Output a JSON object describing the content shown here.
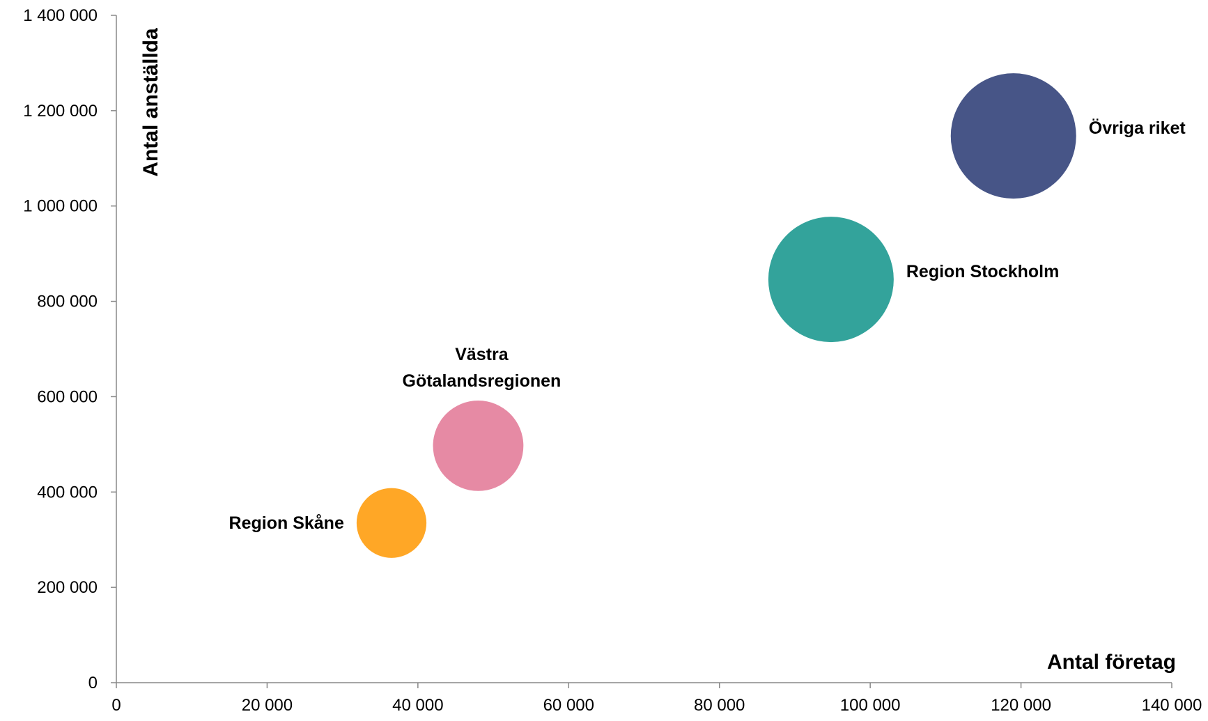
{
  "chart_data": {
    "type": "bubble",
    "xlabel": "Antal företag",
    "ylabel": "Antal anställda",
    "xlim": [
      0,
      140000
    ],
    "ylim": [
      0,
      1400000
    ],
    "x_ticks": [
      0,
      20000,
      40000,
      60000,
      80000,
      100000,
      120000,
      140000
    ],
    "y_ticks": [
      0,
      200000,
      400000,
      600000,
      800000,
      1000000,
      1200000,
      1400000
    ],
    "x_tick_labels": [
      "0",
      "20 000",
      "40 000",
      "60 000",
      "80 000",
      "100 000",
      "120 000",
      "140 000"
    ],
    "y_tick_labels": [
      "0",
      "200 000",
      "400 000",
      "600 000",
      "800 000",
      "1 000 000",
      "1 200 000",
      "1 400 000"
    ],
    "grid": false,
    "points": [
      {
        "label": [
          "Region Skåne"
        ],
        "x": 36500,
        "y": 335000,
        "size": 0.31,
        "color": "#FFA726",
        "label_position": "left"
      },
      {
        "label": [
          "Västra",
          "Götalandsregionen"
        ],
        "x": 48000,
        "y": 497000,
        "size": 0.52,
        "color": "#E68AA4",
        "label_position": "above"
      },
      {
        "label": [
          "Region Stockholm"
        ],
        "x": 94800,
        "y": 846000,
        "size": 1.0,
        "color": "#33A39B",
        "label_position": "right"
      },
      {
        "label": [
          "Övriga riket"
        ],
        "x": 119000,
        "y": 1147000,
        "size": 1.0,
        "color": "#475587",
        "label_position": "right"
      }
    ]
  }
}
